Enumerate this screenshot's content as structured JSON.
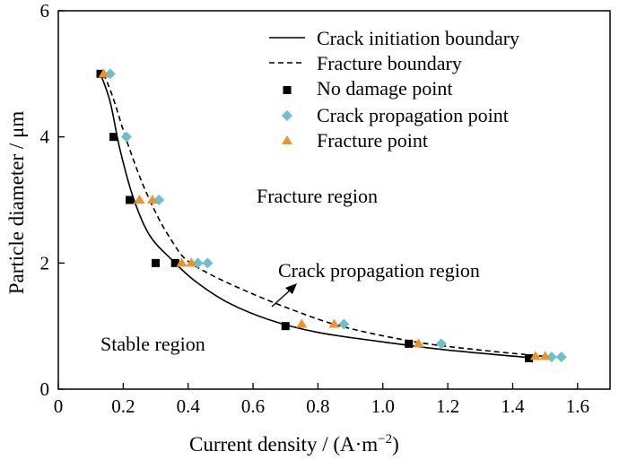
{
  "chart_data": {
    "type": "scatter",
    "xlabel": "Current density / (A·m",
    "xlabel_sup": "−2",
    "xlabel_end": ")",
    "ylabel": "Particle diameter / μm",
    "xlim": [
      0,
      1.7
    ],
    "ylim": [
      0,
      6
    ],
    "xticks": [
      "0",
      "0.2",
      "0.4",
      "0.6",
      "0.8",
      "1.0",
      "1.2",
      "1.4",
      "1.6"
    ],
    "xtick_values": [
      0,
      0.2,
      0.4,
      0.6,
      0.8,
      1.0,
      1.2,
      1.4,
      1.6
    ],
    "yticks": [
      "0",
      "2",
      "4",
      "6"
    ],
    "ytick_values": [
      0,
      2,
      4,
      6
    ],
    "legend": {
      "position": "top-right",
      "entries": [
        "Crack initiation boundary",
        "Fracture boundary",
        "No damage point",
        "Crack propagation point",
        "Fracture point"
      ]
    },
    "colors": {
      "no_damage": "#000000",
      "crack_propagation": "#6cc0cc",
      "fracture": "#f0922c",
      "lines": "#000000"
    },
    "series": [
      {
        "name": "Crack initiation boundary",
        "style": "solid",
        "x": [
          0.13,
          0.16,
          0.19,
          0.23,
          0.28,
          0.35,
          0.42,
          0.52,
          0.65,
          0.8,
          1.0,
          1.2,
          1.45
        ],
        "y": [
          5.0,
          4.55,
          3.8,
          3.05,
          2.45,
          2.05,
          1.72,
          1.38,
          1.1,
          0.9,
          0.75,
          0.62,
          0.5
        ]
      },
      {
        "name": "Fracture boundary",
        "style": "dashed",
        "x": [
          0.14,
          0.17,
          0.21,
          0.26,
          0.31,
          0.35,
          0.39,
          0.45,
          0.55,
          0.7,
          0.87,
          1.1,
          1.3,
          1.5
        ],
        "y": [
          5.0,
          4.6,
          3.95,
          3.25,
          2.7,
          2.35,
          2.07,
          1.87,
          1.62,
          1.3,
          1.0,
          0.75,
          0.62,
          0.52
        ]
      },
      {
        "name": "No damage point",
        "marker": "square",
        "x": [
          0.13,
          0.17,
          0.22,
          0.3,
          0.36,
          0.7,
          1.08,
          1.45
        ],
        "y": [
          5.0,
          4.0,
          3.0,
          2.0,
          2.0,
          1.0,
          0.72,
          0.49
        ]
      },
      {
        "name": "Crack propagation point",
        "marker": "diamond",
        "x": [
          0.16,
          0.21,
          0.31,
          0.43,
          0.46,
          0.88,
          1.18,
          1.52,
          1.55
        ],
        "y": [
          5.0,
          4.0,
          3.0,
          2.0,
          2.0,
          1.03,
          0.72,
          0.51,
          0.51
        ]
      },
      {
        "name": "Fracture point",
        "marker": "triangle",
        "x": [
          0.14,
          0.25,
          0.29,
          0.38,
          0.41,
          0.75,
          0.85,
          1.11,
          1.47,
          1.5
        ],
        "y": [
          5.0,
          3.0,
          3.0,
          2.0,
          2.0,
          1.03,
          1.03,
          0.72,
          0.52,
          0.52
        ]
      }
    ],
    "annotations": [
      {
        "id": "fracture-region",
        "text": "Fracture region"
      },
      {
        "id": "crack-propagation-region",
        "text": "Crack propagation region"
      },
      {
        "id": "stable-region",
        "text": "Stable region"
      }
    ]
  }
}
